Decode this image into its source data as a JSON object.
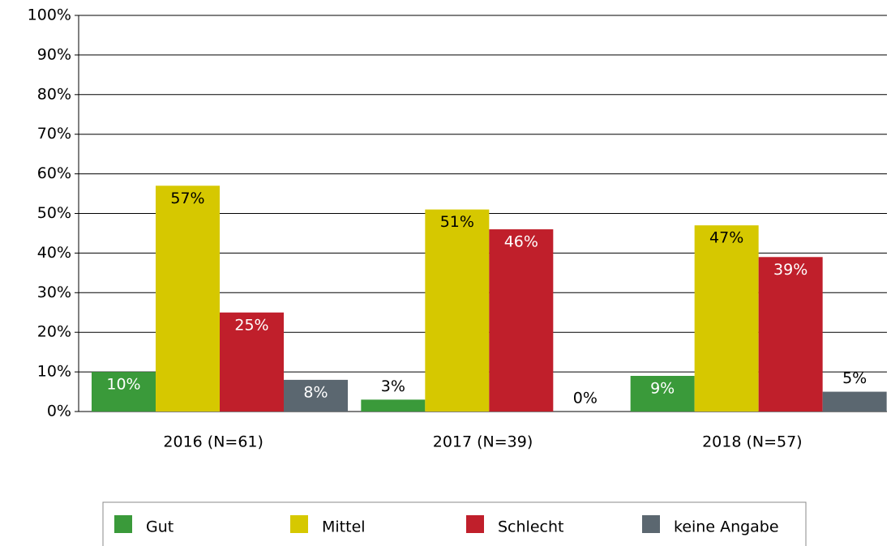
{
  "chart_data": {
    "type": "bar",
    "categories": [
      "2016 (N=61)",
      "2017 (N=39)",
      "2018 (N=57)"
    ],
    "series": [
      {
        "name": "Gut",
        "color": "#3a9a3a",
        "values": [
          10,
          3,
          9
        ],
        "value_labels": [
          "10%",
          "3%",
          "9%"
        ]
      },
      {
        "name": "Mittel",
        "color": "#d6c800",
        "values": [
          57,
          51,
          47
        ],
        "value_labels": [
          "57%",
          "51%",
          "47%"
        ]
      },
      {
        "name": "Schlecht",
        "color": "#c01f2b",
        "values": [
          25,
          46,
          39
        ],
        "value_labels": [
          "25%",
          "46%",
          "39%"
        ]
      },
      {
        "name": "keine Angabe",
        "color": "#5b6770",
        "values": [
          8,
          0,
          5
        ],
        "value_labels": [
          "8%",
          "0%",
          "5%"
        ]
      }
    ],
    "ylim": [
      0,
      100
    ],
    "yticks": [
      {
        "value": 0,
        "label": "0%"
      },
      {
        "value": 10,
        "label": "10%"
      },
      {
        "value": 20,
        "label": "20%"
      },
      {
        "value": 30,
        "label": "30%"
      },
      {
        "value": 40,
        "label": "40%"
      },
      {
        "value": 50,
        "label": "50%"
      },
      {
        "value": 60,
        "label": "60%"
      },
      {
        "value": 70,
        "label": "70%"
      },
      {
        "value": 80,
        "label": "80%"
      },
      {
        "value": 90,
        "label": "90%"
      },
      {
        "value": 100,
        "label": "100%"
      }
    ],
    "grid": true,
    "legend": "bottom"
  }
}
